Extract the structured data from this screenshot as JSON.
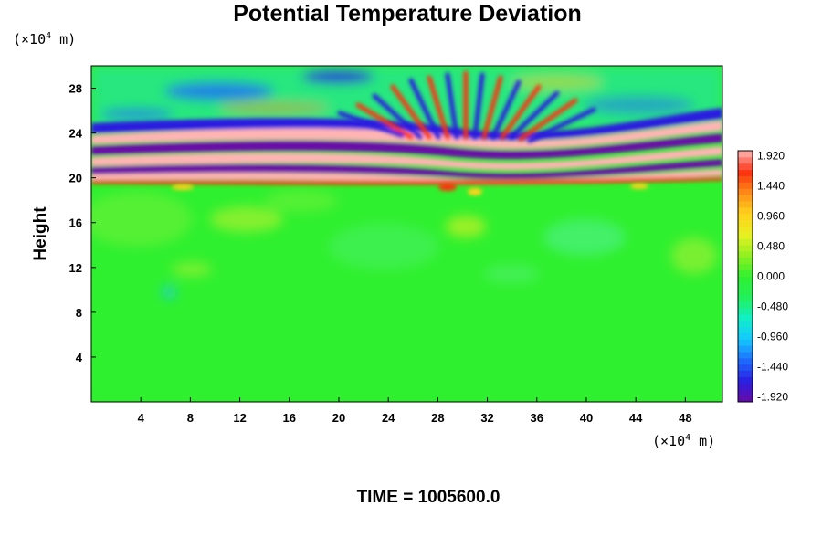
{
  "chart_data": {
    "type": "heatmap",
    "title": "Potential Temperature Deviation",
    "ylabel": "Height",
    "xlabel": "",
    "x_unit": "(×10",
    "x_unit_exp": "4",
    "x_unit_tail": " m)",
    "y_unit": "(×10",
    "y_unit_exp": "4",
    "y_unit_tail": " m)",
    "xlim": [
      0,
      51
    ],
    "ylim": [
      0,
      30
    ],
    "x_ticks": [
      "4",
      "8",
      "12",
      "16",
      "20",
      "24",
      "28",
      "32",
      "36",
      "40",
      "44",
      "48"
    ],
    "x_tick_values": [
      4,
      8,
      12,
      16,
      20,
      24,
      28,
      32,
      36,
      40,
      44,
      48
    ],
    "y_ticks": [
      "4",
      "8",
      "12",
      "16",
      "20",
      "24",
      "28"
    ],
    "y_tick_values": [
      4,
      8,
      12,
      16,
      20,
      24,
      28
    ],
    "colorbar": {
      "range": [
        -2.0,
        2.0
      ],
      "tick_labels": [
        "1.920",
        "1.440",
        "0.960",
        "0.480",
        "0.000",
        "-0.480",
        "-0.960",
        "-1.440",
        "-1.920"
      ],
      "tick_values": [
        1.92,
        1.44,
        0.96,
        0.48,
        0.0,
        -0.48,
        -0.96,
        -1.44,
        -1.92
      ],
      "colors_low_to_high": [
        "#6a0aa8",
        "#2a1ee0",
        "#1e6cff",
        "#14c8ff",
        "#10f0c8",
        "#22f05a",
        "#2ff02f",
        "#90f020",
        "#e8f020",
        "#ffd21a",
        "#ff8c1a",
        "#ff3010",
        "#ffb4b4"
      ]
    },
    "field_description": {
      "lower_region_height_range": [
        0,
        19.5
      ],
      "lower_region_value": 0.0,
      "wave_band_height_range": [
        19.5,
        26
      ],
      "upper_wave_region_height_range": [
        20,
        30
      ],
      "dominant_band_extremes": [
        -1.92,
        1.92
      ]
    }
  },
  "footer": {
    "time_label": "TIME = 1005600.0"
  },
  "colors": {
    "background": "#ffffff",
    "axis": "#000000",
    "base_field": "#33ef33"
  }
}
